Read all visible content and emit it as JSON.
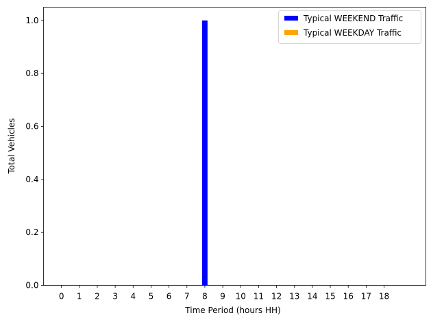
{
  "chart_data": {
    "type": "bar",
    "title": "",
    "xlabel": "Time Period (hours HH)",
    "ylabel": "Total Vehicles",
    "categories": [
      "0",
      "1",
      "2",
      "3",
      "4",
      "5",
      "6",
      "7",
      "8",
      "9",
      "10",
      "11",
      "12",
      "13",
      "14",
      "15",
      "16",
      "17",
      "18"
    ],
    "series": [
      {
        "name": "Typical WEEKEND Traffic",
        "color": "#0000ff",
        "values": [
          0,
          0,
          0,
          0,
          0,
          0,
          0,
          0,
          1,
          0,
          0,
          0,
          0,
          0,
          0,
          0,
          0,
          0,
          0
        ]
      },
      {
        "name": "Typical WEEKDAY Traffic",
        "color": "#ffa500",
        "values": [
          0,
          0,
          0,
          0,
          0,
          0,
          0,
          0,
          0,
          0,
          0,
          0,
          0,
          0,
          0,
          0,
          0,
          0,
          0
        ]
      }
    ],
    "ylim": [
      0,
      1.05
    ],
    "yticks": [
      "0.0",
      "0.2",
      "0.4",
      "0.6",
      "0.8",
      "1.0"
    ],
    "grid": false,
    "legend_position": "top-right"
  }
}
